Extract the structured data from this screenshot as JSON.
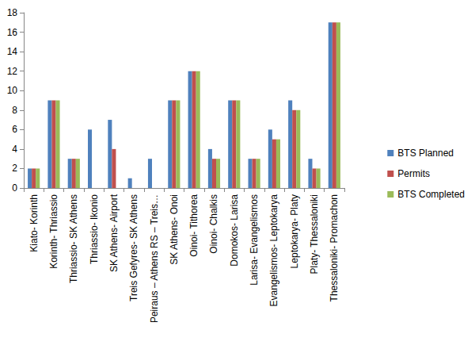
{
  "chart_data": {
    "type": "bar",
    "categories": [
      "Kiato- Korinth",
      "Korinth- Thriassio",
      "Thriassio- SK Athens",
      "Thriassio- Ikonio",
      "SK Athens- Airport",
      "Treis Gefyres- SK Athens",
      "Peiraus – Athens RS – Treis…",
      "SK Athens- Onoi",
      "Oinoi- Tithorea",
      "Oinoi- Chalkis",
      "Domokos- Larisa",
      "Larisa- Evangelismos",
      "Evangelismos- Leptokarya",
      "Leptokarya- Platy",
      "Platy- Thessaloniki",
      "Thessaloniki- Promachon"
    ],
    "series": [
      {
        "name": "BTS Planned",
        "color": "#4f81bd",
        "values": [
          2,
          9,
          3,
          6,
          7,
          1,
          3,
          9,
          12,
          4,
          9,
          3,
          6,
          9,
          3,
          17
        ]
      },
      {
        "name": "Permits",
        "color": "#c0504d",
        "values": [
          2,
          9,
          3,
          0,
          4,
          0,
          0,
          9,
          12,
          3,
          9,
          3,
          5,
          8,
          2,
          17
        ]
      },
      {
        "name": "BTS Completed",
        "color": "#9bbb59",
        "values": [
          2,
          9,
          3,
          0,
          0,
          0,
          0,
          9,
          12,
          3,
          9,
          3,
          5,
          8,
          2,
          17
        ]
      }
    ],
    "ylim": [
      0,
      18
    ],
    "yticks": [
      0,
      2,
      4,
      6,
      8,
      10,
      12,
      14,
      16,
      18
    ],
    "grid": false,
    "legend": "right"
  }
}
